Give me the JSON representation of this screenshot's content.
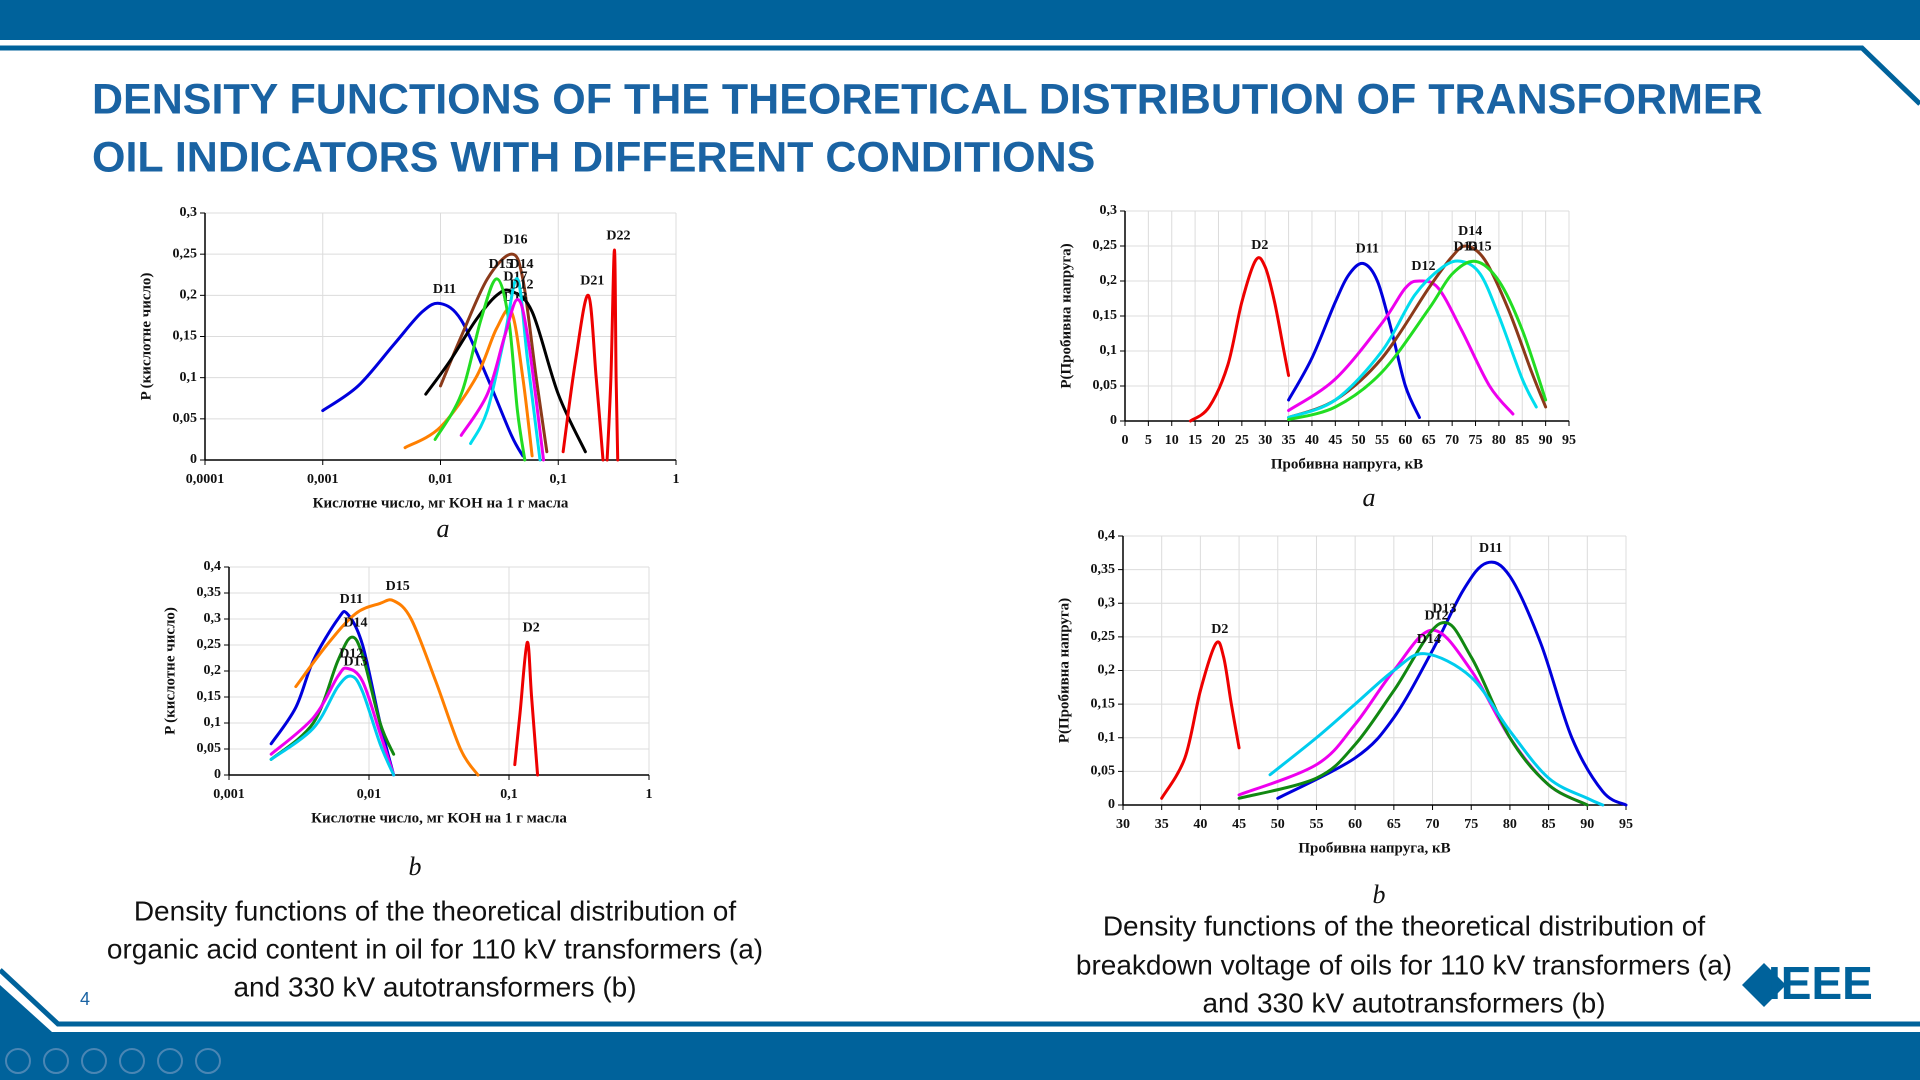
{
  "title_lines": [
    "DENSITY FUNCTIONS OF THE THEORETICAL DISTRIBUTION OF TRANSFORMER",
    "OIL INDICATORS WITH DIFFERENT CONDITIONS"
  ],
  "chart_data": [
    {
      "type": "line",
      "label": "a",
      "xlabel": "Кислотне число, мг КОН на 1 г масла",
      "ylabel": "P (кислотне число)",
      "xscale": "log",
      "xlim": [
        0.0001,
        1
      ],
      "xticks": [
        {
          "value": 0.0001,
          "label": "0,0001"
        },
        {
          "value": 0.001,
          "label": "0,001"
        },
        {
          "value": 0.01,
          "label": "0,01"
        },
        {
          "value": 0.1,
          "label": "0,1"
        },
        1
      ],
      "ylim": [
        0,
        0.3
      ],
      "yticks": [
        0,
        {
          "value": 0.05,
          "label": "0,05"
        },
        {
          "value": 0.1,
          "label": "0,1"
        },
        {
          "value": 0.15,
          "label": "0,15"
        },
        {
          "value": 0.2,
          "label": "0,2"
        },
        {
          "value": 0.25,
          "label": "0,25"
        },
        {
          "value": 0.3,
          "label": "0,3"
        }
      ],
      "grid": true,
      "series": [
        {
          "name": "D11",
          "color": "#0000dd",
          "x": [
            0.001,
            0.002,
            0.004,
            0.007,
            0.01,
            0.015,
            0.025,
            0.04,
            0.05
          ],
          "values": [
            0.06,
            0.09,
            0.14,
            0.18,
            0.19,
            0.17,
            0.1,
            0.03,
            0.005
          ]
        },
        {
          "name": "D16",
          "color": "#8b3a1a",
          "x": [
            0.01,
            0.015,
            0.025,
            0.04,
            0.05,
            0.065,
            0.08
          ],
          "values": [
            0.09,
            0.15,
            0.22,
            0.25,
            0.22,
            0.1,
            0.01
          ]
        },
        {
          "name": "D17",
          "color": "#000000",
          "x": [
            0.0075,
            0.012,
            0.02,
            0.03,
            0.04,
            0.06,
            0.1,
            0.17
          ],
          "values": [
            0.08,
            0.12,
            0.17,
            0.2,
            0.205,
            0.18,
            0.08,
            0.01
          ]
        },
        {
          "name": "D13",
          "color": "#ff7f00",
          "x": [
            0.005,
            0.01,
            0.02,
            0.03,
            0.04,
            0.05,
            0.06
          ],
          "values": [
            0.015,
            0.04,
            0.1,
            0.16,
            0.18,
            0.1,
            0.005
          ]
        },
        {
          "name": "D15",
          "color": "#22dd22",
          "x": [
            0.009,
            0.015,
            0.022,
            0.03,
            0.038,
            0.045,
            0.052
          ],
          "values": [
            0.025,
            0.08,
            0.17,
            0.22,
            0.17,
            0.06,
            0
          ]
        },
        {
          "name": "D14",
          "color": "#00ddee",
          "x": [
            0.018,
            0.025,
            0.035,
            0.045,
            0.055,
            0.07
          ],
          "values": [
            0.02,
            0.06,
            0.15,
            0.22,
            0.12,
            0
          ]
        },
        {
          "name": "D12",
          "color": "#ee00ee",
          "x": [
            0.015,
            0.025,
            0.035,
            0.045,
            0.055,
            0.075
          ],
          "values": [
            0.03,
            0.08,
            0.15,
            0.195,
            0.15,
            0
          ]
        },
        {
          "name": "D21",
          "color": "#ee0000",
          "x": [
            0.11,
            0.14,
            0.18,
            0.21,
            0.24
          ],
          "values": [
            0.01,
            0.12,
            0.2,
            0.1,
            0
          ]
        },
        {
          "name": "D22",
          "color": "#ee0000",
          "x": [
            0.26,
            0.28,
            0.3,
            0.31,
            0.32
          ],
          "values": [
            0,
            0.1,
            0.255,
            0.1,
            0
          ]
        }
      ]
    },
    {
      "type": "line",
      "label": "b",
      "xlabel": "Кислотне число, мг КОН на 1 г масла",
      "ylabel": "P (кислотне число)",
      "xscale": "log",
      "xlim": [
        0.001,
        1
      ],
      "xticks": [
        {
          "value": 0.001,
          "label": "0,001"
        },
        {
          "value": 0.01,
          "label": "0,01"
        },
        {
          "value": 0.1,
          "label": "0,1"
        },
        1
      ],
      "ylim": [
        0,
        0.4
      ],
      "yticks": [
        0,
        {
          "value": 0.05,
          "label": "0,05"
        },
        {
          "value": 0.1,
          "label": "0,1"
        },
        {
          "value": 0.15,
          "label": "0,15"
        },
        {
          "value": 0.2,
          "label": "0,2"
        },
        {
          "value": 0.25,
          "label": "0,25"
        },
        {
          "value": 0.3,
          "label": "0,3"
        },
        {
          "value": 0.35,
          "label": "0,35"
        },
        {
          "value": 0.4,
          "label": "0,4"
        }
      ],
      "grid": true,
      "series": [
        {
          "name": "D11",
          "color": "#0000dd",
          "x": [
            0.002,
            0.003,
            0.004,
            0.006,
            0.007,
            0.009,
            0.012,
            0.015
          ],
          "values": [
            0.06,
            0.13,
            0.22,
            0.3,
            0.31,
            0.25,
            0.1,
            0
          ]
        },
        {
          "name": "D15",
          "color": "#ff7f00",
          "x": [
            0.003,
            0.005,
            0.008,
            0.012,
            0.015,
            0.02,
            0.03,
            0.045,
            0.06
          ],
          "values": [
            0.17,
            0.25,
            0.31,
            0.33,
            0.335,
            0.3,
            0.18,
            0.05,
            0
          ]
        },
        {
          "name": "D14",
          "color": "#118811",
          "x": [
            0.002,
            0.004,
            0.006,
            0.0075,
            0.009,
            0.012,
            0.015
          ],
          "values": [
            0.03,
            0.1,
            0.22,
            0.265,
            0.23,
            0.1,
            0.04
          ]
        },
        {
          "name": "D12",
          "color": "#ee00ee",
          "x": [
            0.002,
            0.004,
            0.006,
            0.007,
            0.009,
            0.012,
            0.015
          ],
          "values": [
            0.04,
            0.11,
            0.19,
            0.205,
            0.18,
            0.08,
            0
          ]
        },
        {
          "name": "D13",
          "color": "#00ccee",
          "x": [
            0.002,
            0.004,
            0.006,
            0.0075,
            0.009,
            0.012,
            0.015
          ],
          "values": [
            0.03,
            0.09,
            0.17,
            0.19,
            0.16,
            0.06,
            0
          ]
        },
        {
          "name": "D2",
          "color": "#ee0000",
          "x": [
            0.11,
            0.12,
            0.135,
            0.145,
            0.16
          ],
          "values": [
            0.02,
            0.12,
            0.255,
            0.15,
            0
          ]
        }
      ]
    },
    {
      "type": "line",
      "label": "a",
      "xlabel": "Пробивна напруга, кВ",
      "ylabel": "P(Пробивна напруга)",
      "xscale": "linear",
      "xlim": [
        0,
        95
      ],
      "xticks": [
        0,
        5,
        10,
        15,
        20,
        25,
        30,
        35,
        40,
        45,
        50,
        55,
        60,
        65,
        70,
        75,
        80,
        85,
        90,
        95
      ],
      "ylim": [
        0,
        0.3
      ],
      "yticks": [
        0,
        {
          "value": 0.05,
          "label": "0,05"
        },
        {
          "value": 0.1,
          "label": "0,1"
        },
        {
          "value": 0.15,
          "label": "0,15"
        },
        {
          "value": 0.2,
          "label": "0,2"
        },
        {
          "value": 0.25,
          "label": "0,25"
        },
        {
          "value": 0.3,
          "label": "0,3"
        }
      ],
      "grid": true,
      "series": [
        {
          "name": "D2",
          "color": "#ee0000",
          "x": [
            14,
            18,
            22,
            25,
            28,
            30,
            32,
            34,
            35
          ],
          "values": [
            0,
            0.02,
            0.08,
            0.17,
            0.23,
            0.22,
            0.17,
            0.1,
            0.065
          ]
        },
        {
          "name": "D11",
          "color": "#0000dd",
          "x": [
            35,
            40,
            45,
            48,
            51,
            54,
            57,
            60,
            63
          ],
          "values": [
            0.03,
            0.09,
            0.17,
            0.21,
            0.225,
            0.2,
            0.13,
            0.05,
            0.005
          ]
        },
        {
          "name": "D12",
          "color": "#ee00ee",
          "x": [
            35,
            45,
            55,
            60,
            63,
            67,
            72,
            78,
            83
          ],
          "values": [
            0.015,
            0.06,
            0.14,
            0.19,
            0.2,
            0.19,
            0.13,
            0.05,
            0.01
          ]
        },
        {
          "name": "D14",
          "color": "#8b3a1a",
          "x": [
            35,
            45,
            55,
            65,
            70,
            73,
            77,
            82,
            87,
            90
          ],
          "values": [
            0.005,
            0.03,
            0.09,
            0.19,
            0.235,
            0.25,
            0.23,
            0.16,
            0.07,
            0.02
          ]
        },
        {
          "name": "D13",
          "color": "#00ddee",
          "x": [
            35,
            45,
            55,
            62,
            68,
            72,
            76,
            80,
            85,
            88
          ],
          "values": [
            0.005,
            0.03,
            0.1,
            0.18,
            0.22,
            0.228,
            0.21,
            0.15,
            0.06,
            0.02
          ]
        },
        {
          "name": "D15",
          "color": "#22dd22",
          "x": [
            35,
            45,
            55,
            65,
            70,
            75,
            80,
            85,
            90
          ],
          "values": [
            0.002,
            0.02,
            0.07,
            0.16,
            0.21,
            0.228,
            0.2,
            0.13,
            0.03
          ]
        }
      ]
    },
    {
      "type": "line",
      "label": "b",
      "xlabel": "Пробивна напруга, кВ",
      "ylabel": "P(Пробивна напруга)",
      "xscale": "linear",
      "xlim": [
        30,
        95
      ],
      "xticks": [
        30,
        35,
        40,
        45,
        50,
        55,
        60,
        65,
        70,
        75,
        80,
        85,
        90,
        95
      ],
      "ylim": [
        0,
        0.4
      ],
      "yticks": [
        0,
        {
          "value": 0.05,
          "label": "0,05"
        },
        {
          "value": 0.1,
          "label": "0,1"
        },
        {
          "value": 0.15,
          "label": "0,15"
        },
        {
          "value": 0.2,
          "label": "0,2"
        },
        {
          "value": 0.25,
          "label": "0,25"
        },
        {
          "value": 0.3,
          "label": "0,3"
        },
        {
          "value": 0.35,
          "label": "0,35"
        },
        {
          "value": 0.4,
          "label": "0,4"
        }
      ],
      "grid": true,
      "series": [
        {
          "name": "D2",
          "color": "#ee0000",
          "x": [
            35,
            38,
            40,
            42,
            43,
            44,
            45
          ],
          "values": [
            0.01,
            0.07,
            0.17,
            0.24,
            0.22,
            0.15,
            0.085
          ]
        },
        {
          "name": "D11",
          "color": "#0000dd",
          "x": [
            50,
            60,
            65,
            70,
            74,
            77,
            80,
            84,
            88,
            92,
            95
          ],
          "values": [
            0.01,
            0.07,
            0.13,
            0.23,
            0.32,
            0.36,
            0.34,
            0.24,
            0.1,
            0.02,
            0
          ]
        },
        {
          "name": "D12",
          "color": "#ee00ee",
          "x": [
            45,
            55,
            60,
            65,
            70,
            75,
            80,
            85,
            90
          ],
          "values": [
            0.015,
            0.06,
            0.12,
            0.2,
            0.26,
            0.2,
            0.1,
            0.03,
            0
          ]
        },
        {
          "name": "D13",
          "color": "#118811",
          "x": [
            45,
            55,
            60,
            65,
            71,
            75,
            80,
            85,
            90
          ],
          "values": [
            0.01,
            0.04,
            0.09,
            0.17,
            0.27,
            0.22,
            0.1,
            0.03,
            0
          ]
        },
        {
          "name": "D14",
          "color": "#00ccee",
          "x": [
            49,
            55,
            60,
            65,
            69,
            75,
            80,
            85,
            90,
            92
          ],
          "values": [
            0.045,
            0.1,
            0.15,
            0.2,
            0.225,
            0.19,
            0.11,
            0.04,
            0.01,
            0
          ]
        }
      ]
    }
  ],
  "captions": [
    [
      "Density functions of the theoretical distribution of",
      "organic acid content in oil for 110 kV transformers (a)",
      "and 330 kV autotransformers (b)"
    ],
    [
      "Density functions of the theoretical distribution of",
      "breakdown voltage of oils for 110 kV transformers (a)",
      "and 330 kV autotransformers (b)"
    ]
  ],
  "page_number": "4",
  "logo": "IEEE"
}
